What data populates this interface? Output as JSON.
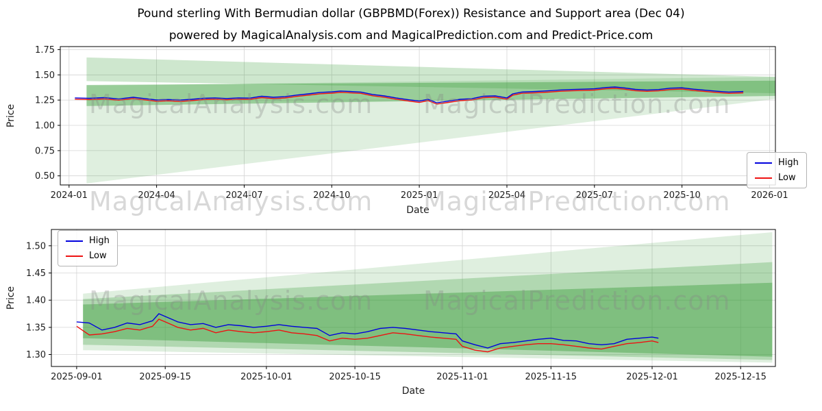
{
  "title": "Pound sterling With Bermudian dollar (GBPBMD(Forex)) Resistance and Support area (Dec 04)",
  "subtitle": "powered by MagicalAnalysis.com and MagicalPrediction.com and Predict-Price.com",
  "watermark": {
    "analysis": "MagicalAnalysis.com",
    "prediction": "MagicalPrediction.com"
  },
  "colors": {
    "high": "#0000dd",
    "low": "#ee1111",
    "band": "#3a9e3a",
    "grid": "#d4d4d4",
    "spine": "#000000"
  },
  "legend": {
    "high_label": "High",
    "low_label": "Low"
  },
  "chart_data": [
    {
      "type": "line",
      "name": "long-term",
      "xlabel": "Date",
      "ylabel": "Price",
      "x_unit": "months since 2024-01",
      "xlim": [
        -0.3,
        24.2
      ],
      "ylim": [
        0.41,
        1.78
      ],
      "grid": true,
      "legend_position": "center right",
      "xticks": [
        {
          "v": 0,
          "label": "2024-01"
        },
        {
          "v": 3,
          "label": "2024-04"
        },
        {
          "v": 6,
          "label": "2024-07"
        },
        {
          "v": 9,
          "label": "2024-10"
        },
        {
          "v": 12,
          "label": "2025-01"
        },
        {
          "v": 15,
          "label": "2025-04"
        },
        {
          "v": 18,
          "label": "2025-07"
        },
        {
          "v": 21,
          "label": "2025-10"
        },
        {
          "v": 24,
          "label": "2026-01"
        }
      ],
      "yticks": [
        {
          "v": 0.5,
          "label": "0.50"
        },
        {
          "v": 0.75,
          "label": "0.75"
        },
        {
          "v": 1.0,
          "label": "1.00"
        },
        {
          "v": 1.25,
          "label": "1.25"
        },
        {
          "v": 1.5,
          "label": "1.50"
        },
        {
          "v": 1.75,
          "label": "1.75"
        }
      ],
      "series": [
        {
          "name": "High",
          "color": "#0000dd",
          "x": [
            0.2,
            0.7,
            1.2,
            1.7,
            2.2,
            2.7,
            3.0,
            3.4,
            3.8,
            4.2,
            4.6,
            5.0,
            5.4,
            5.8,
            6.2,
            6.6,
            7.0,
            7.4,
            7.8,
            8.2,
            8.6,
            9.0,
            9.3,
            9.6,
            10.0,
            10.4,
            10.8,
            11.2,
            11.6,
            12.0,
            12.3,
            12.6,
            13.0,
            13.4,
            13.8,
            14.2,
            14.6,
            15.0,
            15.2,
            15.5,
            16.0,
            16.4,
            16.8,
            17.2,
            17.6,
            18.0,
            18.4,
            18.7,
            19.0,
            19.4,
            19.8,
            20.2,
            20.6,
            21.0,
            21.4,
            21.8,
            22.2,
            22.6,
            23.1
          ],
          "y": [
            1.272,
            1.268,
            1.275,
            1.262,
            1.278,
            1.262,
            1.252,
            1.256,
            1.25,
            1.258,
            1.268,
            1.272,
            1.266,
            1.272,
            1.27,
            1.288,
            1.278,
            1.284,
            1.3,
            1.312,
            1.326,
            1.332,
            1.34,
            1.336,
            1.33,
            1.306,
            1.292,
            1.272,
            1.255,
            1.24,
            1.258,
            1.224,
            1.24,
            1.258,
            1.264,
            1.288,
            1.292,
            1.272,
            1.312,
            1.33,
            1.336,
            1.342,
            1.35,
            1.355,
            1.358,
            1.362,
            1.375,
            1.38,
            1.372,
            1.356,
            1.35,
            1.355,
            1.368,
            1.372,
            1.358,
            1.348,
            1.338,
            1.33,
            1.335
          ]
        },
        {
          "name": "Low",
          "color": "#ee1111",
          "x": [
            0.2,
            0.7,
            1.2,
            1.7,
            2.2,
            2.7,
            3.0,
            3.4,
            3.8,
            4.2,
            4.6,
            5.0,
            5.4,
            5.8,
            6.2,
            6.6,
            7.0,
            7.4,
            7.8,
            8.2,
            8.6,
            9.0,
            9.3,
            9.6,
            10.0,
            10.4,
            10.8,
            11.2,
            11.6,
            12.0,
            12.3,
            12.6,
            13.0,
            13.4,
            13.8,
            14.2,
            14.6,
            15.0,
            15.2,
            15.5,
            16.0,
            16.4,
            16.8,
            17.2,
            17.6,
            18.0,
            18.4,
            18.7,
            19.0,
            19.4,
            19.8,
            20.2,
            20.6,
            21.0,
            21.4,
            21.8,
            22.2,
            22.6,
            23.1
          ],
          "y": [
            1.259,
            1.255,
            1.262,
            1.249,
            1.265,
            1.249,
            1.239,
            1.243,
            1.237,
            1.245,
            1.255,
            1.259,
            1.253,
            1.259,
            1.257,
            1.275,
            1.265,
            1.271,
            1.287,
            1.299,
            1.313,
            1.319,
            1.327,
            1.323,
            1.317,
            1.293,
            1.279,
            1.259,
            1.242,
            1.227,
            1.245,
            1.211,
            1.227,
            1.245,
            1.251,
            1.275,
            1.279,
            1.259,
            1.299,
            1.317,
            1.323,
            1.329,
            1.337,
            1.342,
            1.345,
            1.349,
            1.362,
            1.367,
            1.359,
            1.343,
            1.337,
            1.342,
            1.355,
            1.359,
            1.345,
            1.335,
            1.325,
            1.317,
            1.322
          ]
        }
      ],
      "bands": [
        {
          "opacity": 0.16,
          "points": [
            [
              0.6,
              0.425
            ],
            [
              24.2,
              1.262
            ],
            [
              24.2,
              1.48
            ],
            [
              0.6,
              1.392
            ]
          ]
        },
        {
          "opacity": 0.25,
          "points": [
            [
              0.6,
              1.438
            ],
            [
              24.2,
              1.318
            ],
            [
              24.2,
              1.48
            ],
            [
              0.6,
              1.672
            ]
          ]
        },
        {
          "opacity": 0.42,
          "points": [
            [
              0.6,
              1.192
            ],
            [
              24.2,
              1.292
            ],
            [
              24.2,
              1.442
            ],
            [
              0.6,
              1.4
            ]
          ]
        }
      ]
    },
    {
      "type": "line",
      "name": "recent",
      "xlabel": "Date",
      "ylabel": "Price",
      "x_unit": "days since 2025-09-01",
      "xlim": [
        -4,
        110.5
      ],
      "ylim": [
        1.278,
        1.53
      ],
      "grid": true,
      "legend_position": "upper left",
      "xticks": [
        {
          "v": 0,
          "label": "2025-09-01"
        },
        {
          "v": 14,
          "label": "2025-09-15"
        },
        {
          "v": 30,
          "label": "2025-10-01"
        },
        {
          "v": 44,
          "label": "2025-10-15"
        },
        {
          "v": 61,
          "label": "2025-11-01"
        },
        {
          "v": 75,
          "label": "2025-11-15"
        },
        {
          "v": 91,
          "label": "2025-12-01"
        },
        {
          "v": 105,
          "label": "2025-12-15"
        }
      ],
      "yticks": [
        {
          "v": 1.3,
          "label": "1.30"
        },
        {
          "v": 1.35,
          "label": "1.35"
        },
        {
          "v": 1.4,
          "label": "1.40"
        },
        {
          "v": 1.45,
          "label": "1.45"
        },
        {
          "v": 1.5,
          "label": "1.50"
        }
      ],
      "series": [
        {
          "name": "High",
          "color": "#0000dd",
          "x": [
            0,
            2,
            4,
            6,
            8,
            10,
            12,
            13,
            14,
            16,
            18,
            20,
            22,
            24,
            26,
            28,
            30,
            32,
            34,
            36,
            38,
            40,
            42,
            44,
            46,
            48,
            50,
            52,
            54,
            56,
            58,
            60,
            61,
            63,
            65,
            67,
            69,
            71,
            73,
            75,
            77,
            79,
            81,
            83,
            85,
            87,
            89,
            91,
            92
          ],
          "y": [
            1.36,
            1.358,
            1.345,
            1.35,
            1.358,
            1.355,
            1.362,
            1.375,
            1.37,
            1.36,
            1.355,
            1.357,
            1.35,
            1.355,
            1.353,
            1.35,
            1.352,
            1.355,
            1.352,
            1.35,
            1.348,
            1.335,
            1.34,
            1.338,
            1.342,
            1.348,
            1.35,
            1.348,
            1.345,
            1.342,
            1.34,
            1.338,
            1.325,
            1.318,
            1.312,
            1.32,
            1.322,
            1.325,
            1.328,
            1.33,
            1.326,
            1.325,
            1.32,
            1.318,
            1.32,
            1.328,
            1.33,
            1.332,
            1.33
          ]
        },
        {
          "name": "Low",
          "color": "#ee1111",
          "x": [
            0,
            2,
            4,
            6,
            8,
            10,
            12,
            13,
            14,
            16,
            18,
            20,
            22,
            24,
            26,
            28,
            30,
            32,
            34,
            36,
            38,
            40,
            42,
            44,
            46,
            48,
            50,
            52,
            54,
            56,
            58,
            60,
            61,
            63,
            65,
            67,
            69,
            71,
            73,
            75,
            77,
            79,
            81,
            83,
            85,
            87,
            89,
            91,
            92
          ],
          "y": [
            1.352,
            1.336,
            1.338,
            1.342,
            1.348,
            1.345,
            1.352,
            1.365,
            1.36,
            1.35,
            1.345,
            1.348,
            1.34,
            1.345,
            1.342,
            1.34,
            1.342,
            1.345,
            1.34,
            1.338,
            1.335,
            1.325,
            1.33,
            1.328,
            1.33,
            1.335,
            1.34,
            1.338,
            1.335,
            1.332,
            1.33,
            1.328,
            1.315,
            1.308,
            1.305,
            1.312,
            1.315,
            1.318,
            1.32,
            1.32,
            1.318,
            1.315,
            1.312,
            1.31,
            1.315,
            1.32,
            1.322,
            1.325,
            1.322
          ]
        }
      ],
      "bands": [
        {
          "opacity": 0.16,
          "points": [
            [
              1,
              1.308
            ],
            [
              110,
              1.285
            ],
            [
              110,
              1.525
            ],
            [
              1,
              1.412
            ]
          ]
        },
        {
          "opacity": 0.28,
          "points": [
            [
              1,
              1.318
            ],
            [
              110,
              1.29
            ],
            [
              110,
              1.47
            ],
            [
              1,
              1.402
            ]
          ]
        },
        {
          "opacity": 0.42,
          "points": [
            [
              1,
              1.33
            ],
            [
              110,
              1.296
            ],
            [
              110,
              1.432
            ],
            [
              1,
              1.392
            ]
          ]
        }
      ]
    }
  ]
}
